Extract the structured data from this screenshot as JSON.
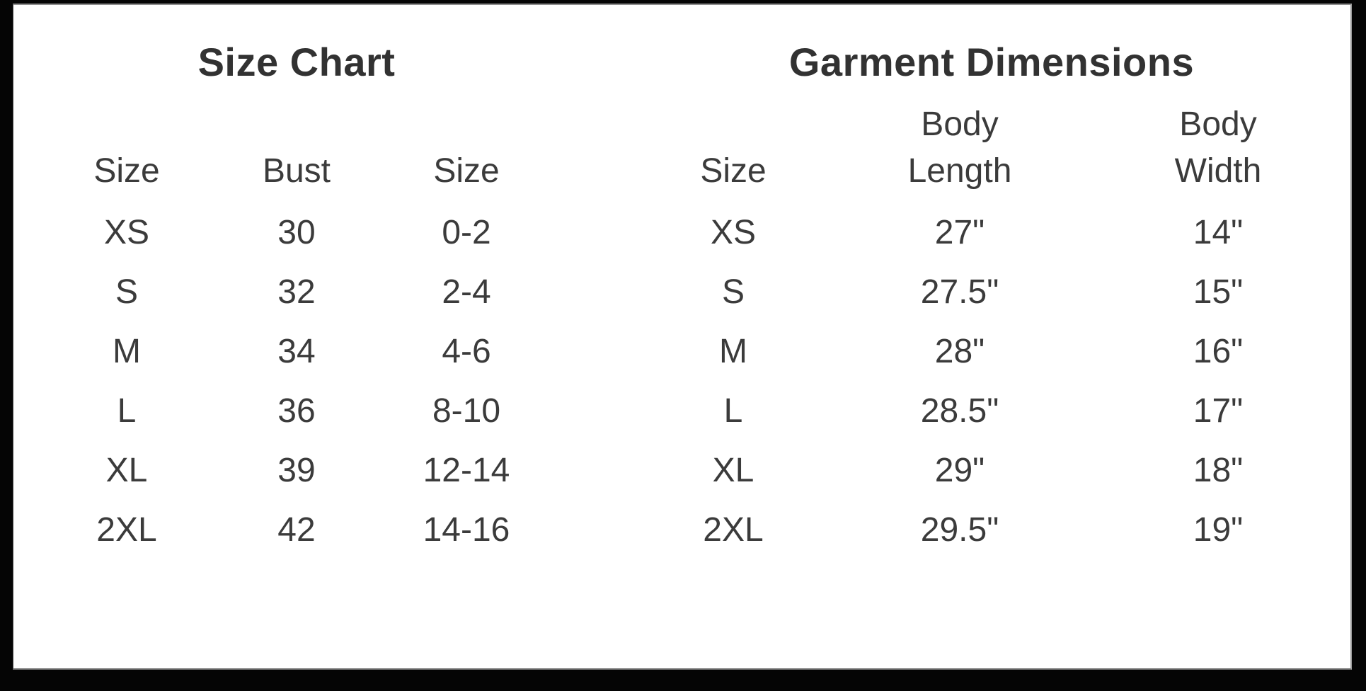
{
  "image_title": "Size chart and garment dimensions",
  "colors": {
    "background": "#ffffff",
    "frame": "#000000",
    "text": "#3b3b3b",
    "title_text": "#323232"
  },
  "chart_data": [
    {
      "type": "table",
      "title": "Size Chart",
      "columns": [
        "Size",
        "Bust",
        "Size"
      ],
      "rows": [
        [
          "XS",
          "30",
          "0-2"
        ],
        [
          "S",
          "32",
          "2-4"
        ],
        [
          "M",
          "34",
          "4-6"
        ],
        [
          "L",
          "36",
          "8-10"
        ],
        [
          "XL",
          "39",
          "12-14"
        ],
        [
          "2XL",
          "42",
          "14-16"
        ]
      ]
    },
    {
      "type": "table",
      "title": "Garment Dimensions",
      "columns": [
        "Size",
        "Body Length",
        "Body Width"
      ],
      "rows": [
        [
          "XS",
          "27\"",
          "14\""
        ],
        [
          "S",
          "27.5\"",
          "15\""
        ],
        [
          "M",
          "28\"",
          "16\""
        ],
        [
          "L",
          "28.5\"",
          "17\""
        ],
        [
          "XL",
          "29\"",
          "18\""
        ],
        [
          "2XL",
          "29.5\"",
          "19\""
        ]
      ]
    }
  ]
}
